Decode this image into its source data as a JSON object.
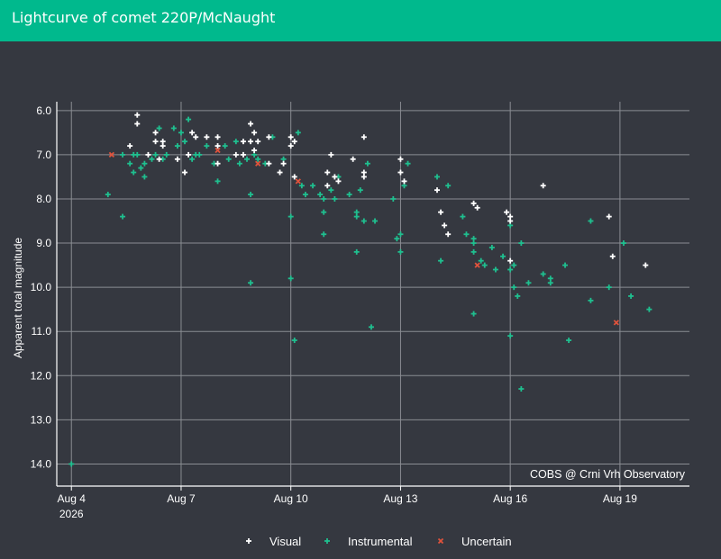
{
  "header": {
    "title": "Lightcurve of comet 220P/McNaught"
  },
  "colors": {
    "visual": "#ffffff",
    "instrumental": "#1fbf8f",
    "uncertain": "#e0533c",
    "header": "#00b98d",
    "background": "#353840",
    "grid": "#8a8d93"
  },
  "chart_data": {
    "type": "scatter",
    "title": "Lightcurve of comet 220P/McNaught",
    "xlabel": "",
    "ylabel": "Apparent total magnitude",
    "x_ticks": [
      {
        "day": 4,
        "label": "Aug 4",
        "sublabel": "2026"
      },
      {
        "day": 7,
        "label": "Aug 7"
      },
      {
        "day": 10,
        "label": "Aug 10"
      },
      {
        "day": 13,
        "label": "Aug 13"
      },
      {
        "day": 16,
        "label": "Aug 16"
      },
      {
        "day": 19,
        "label": "Aug 19"
      }
    ],
    "y_ticks": [
      "6.0",
      "7.0",
      "8.0",
      "9.0",
      "10.0",
      "11.0",
      "12.0",
      "13.0",
      "14.0"
    ],
    "xlim": [
      3.6,
      20.9
    ],
    "ylim": [
      5.8,
      14.5
    ],
    "y_reversed": true,
    "x_unit": "day of August 2026",
    "grid": true,
    "legend_position": "bottom",
    "annotation": "COBS @ Crni Vrh Observatory",
    "series": [
      {
        "name": "Visual",
        "marker": "plus",
        "points": [
          [
            5.8,
            6.1
          ],
          [
            5.8,
            6.3
          ],
          [
            5.6,
            6.8
          ],
          [
            6.3,
            6.5
          ],
          [
            6.3,
            6.7
          ],
          [
            6.5,
            6.7
          ],
          [
            6.5,
            6.8
          ],
          [
            6.1,
            7.0
          ],
          [
            6.4,
            7.1
          ],
          [
            6.9,
            7.1
          ],
          [
            7.2,
            7.0
          ],
          [
            7.1,
            7.4
          ],
          [
            7.3,
            6.5
          ],
          [
            7.4,
            6.6
          ],
          [
            7.7,
            6.6
          ],
          [
            8.0,
            6.6
          ],
          [
            8.0,
            6.8
          ],
          [
            8.0,
            7.2
          ],
          [
            8.5,
            7.0
          ],
          [
            8.7,
            6.7
          ],
          [
            8.7,
            7.0
          ],
          [
            8.9,
            6.3
          ],
          [
            8.9,
            6.7
          ],
          [
            9.0,
            6.5
          ],
          [
            9.0,
            6.9
          ],
          [
            9.1,
            6.7
          ],
          [
            9.4,
            6.6
          ],
          [
            9.4,
            7.2
          ],
          [
            9.7,
            7.4
          ],
          [
            9.8,
            7.2
          ],
          [
            10.0,
            6.6
          ],
          [
            10.0,
            6.8
          ],
          [
            10.1,
            6.7
          ],
          [
            10.1,
            7.5
          ],
          [
            11.0,
            7.4
          ],
          [
            11.1,
            7.0
          ],
          [
            11.0,
            7.7
          ],
          [
            11.2,
            7.5
          ],
          [
            11.3,
            7.6
          ],
          [
            11.7,
            7.1
          ],
          [
            12.0,
            6.6
          ],
          [
            12.0,
            7.4
          ],
          [
            12.0,
            7.5
          ],
          [
            13.0,
            7.1
          ],
          [
            13.0,
            7.4
          ],
          [
            13.1,
            7.6
          ],
          [
            14.0,
            7.8
          ],
          [
            14.1,
            8.3
          ],
          [
            14.2,
            8.6
          ],
          [
            14.3,
            8.8
          ],
          [
            15.0,
            8.1
          ],
          [
            15.1,
            8.2
          ],
          [
            15.9,
            8.3
          ],
          [
            16.0,
            8.4
          ],
          [
            16.0,
            8.5
          ],
          [
            16.0,
            9.4
          ],
          [
            16.9,
            7.7
          ],
          [
            18.7,
            8.4
          ],
          [
            18.8,
            9.3
          ],
          [
            19.7,
            9.5
          ]
        ]
      },
      {
        "name": "Instrumental",
        "marker": "plus",
        "points": [
          [
            4.0,
            14.0
          ],
          [
            5.0,
            7.9
          ],
          [
            5.4,
            8.4
          ],
          [
            5.4,
            7.0
          ],
          [
            5.6,
            7.2
          ],
          [
            5.7,
            7.0
          ],
          [
            5.7,
            7.4
          ],
          [
            5.8,
            7.0
          ],
          [
            5.9,
            7.3
          ],
          [
            6.0,
            7.5
          ],
          [
            6.0,
            7.2
          ],
          [
            6.2,
            7.1
          ],
          [
            6.3,
            7.0
          ],
          [
            6.4,
            6.4
          ],
          [
            6.5,
            7.1
          ],
          [
            6.6,
            7.0
          ],
          [
            6.8,
            6.4
          ],
          [
            6.9,
            6.8
          ],
          [
            7.0,
            6.5
          ],
          [
            7.1,
            6.7
          ],
          [
            7.2,
            6.2
          ],
          [
            7.3,
            7.1
          ],
          [
            7.4,
            7.0
          ],
          [
            7.5,
            7.0
          ],
          [
            7.7,
            6.8
          ],
          [
            7.9,
            7.2
          ],
          [
            8.0,
            7.6
          ],
          [
            8.2,
            6.8
          ],
          [
            8.3,
            7.1
          ],
          [
            8.5,
            6.7
          ],
          [
            8.6,
            7.2
          ],
          [
            8.8,
            7.1
          ],
          [
            8.9,
            7.9
          ],
          [
            8.9,
            9.9
          ],
          [
            9.0,
            7.0
          ],
          [
            9.1,
            7.1
          ],
          [
            9.3,
            7.2
          ],
          [
            9.5,
            6.6
          ],
          [
            9.8,
            7.1
          ],
          [
            10.0,
            8.4
          ],
          [
            10.0,
            9.8
          ],
          [
            10.1,
            11.2
          ],
          [
            10.2,
            6.5
          ],
          [
            10.3,
            7.7
          ],
          [
            10.4,
            7.9
          ],
          [
            10.6,
            7.7
          ],
          [
            10.8,
            7.9
          ],
          [
            10.9,
            8.0
          ],
          [
            10.9,
            8.3
          ],
          [
            10.9,
            8.8
          ],
          [
            11.1,
            7.8
          ],
          [
            11.2,
            8.0
          ],
          [
            11.3,
            7.5
          ],
          [
            11.6,
            7.9
          ],
          [
            11.8,
            8.3
          ],
          [
            11.8,
            8.4
          ],
          [
            11.8,
            9.2
          ],
          [
            11.9,
            7.8
          ],
          [
            12.0,
            8.5
          ],
          [
            12.1,
            7.2
          ],
          [
            12.2,
            10.9
          ],
          [
            12.3,
            8.5
          ],
          [
            12.8,
            8.0
          ],
          [
            12.9,
            8.9
          ],
          [
            13.0,
            9.2
          ],
          [
            13.0,
            8.8
          ],
          [
            13.1,
            7.7
          ],
          [
            13.2,
            7.2
          ],
          [
            14.0,
            7.5
          ],
          [
            14.1,
            9.4
          ],
          [
            14.3,
            7.7
          ],
          [
            14.7,
            8.4
          ],
          [
            14.8,
            8.8
          ],
          [
            15.0,
            8.9
          ],
          [
            15.0,
            9.2
          ],
          [
            15.0,
            9.0
          ],
          [
            15.0,
            10.6
          ],
          [
            15.2,
            9.4
          ],
          [
            15.3,
            9.5
          ],
          [
            15.5,
            9.1
          ],
          [
            15.6,
            9.6
          ],
          [
            15.8,
            9.3
          ],
          [
            16.0,
            9.6
          ],
          [
            16.0,
            8.6
          ],
          [
            16.0,
            11.1
          ],
          [
            16.1,
            9.5
          ],
          [
            16.1,
            10.0
          ],
          [
            16.2,
            10.2
          ],
          [
            16.3,
            12.3
          ],
          [
            16.3,
            9.0
          ],
          [
            16.5,
            9.9
          ],
          [
            16.9,
            9.7
          ],
          [
            17.1,
            9.8
          ],
          [
            17.1,
            9.9
          ],
          [
            17.5,
            9.5
          ],
          [
            17.6,
            11.2
          ],
          [
            18.2,
            8.5
          ],
          [
            18.2,
            10.3
          ],
          [
            18.7,
            10.0
          ],
          [
            19.1,
            9.0
          ],
          [
            19.3,
            10.2
          ],
          [
            19.8,
            10.5
          ]
        ]
      },
      {
        "name": "Uncertain",
        "marker": "x",
        "points": [
          [
            5.1,
            7.0
          ],
          [
            8.0,
            6.9
          ],
          [
            9.1,
            7.2
          ],
          [
            10.2,
            7.6
          ],
          [
            15.1,
            9.5
          ],
          [
            18.9,
            10.8
          ]
        ]
      }
    ]
  }
}
